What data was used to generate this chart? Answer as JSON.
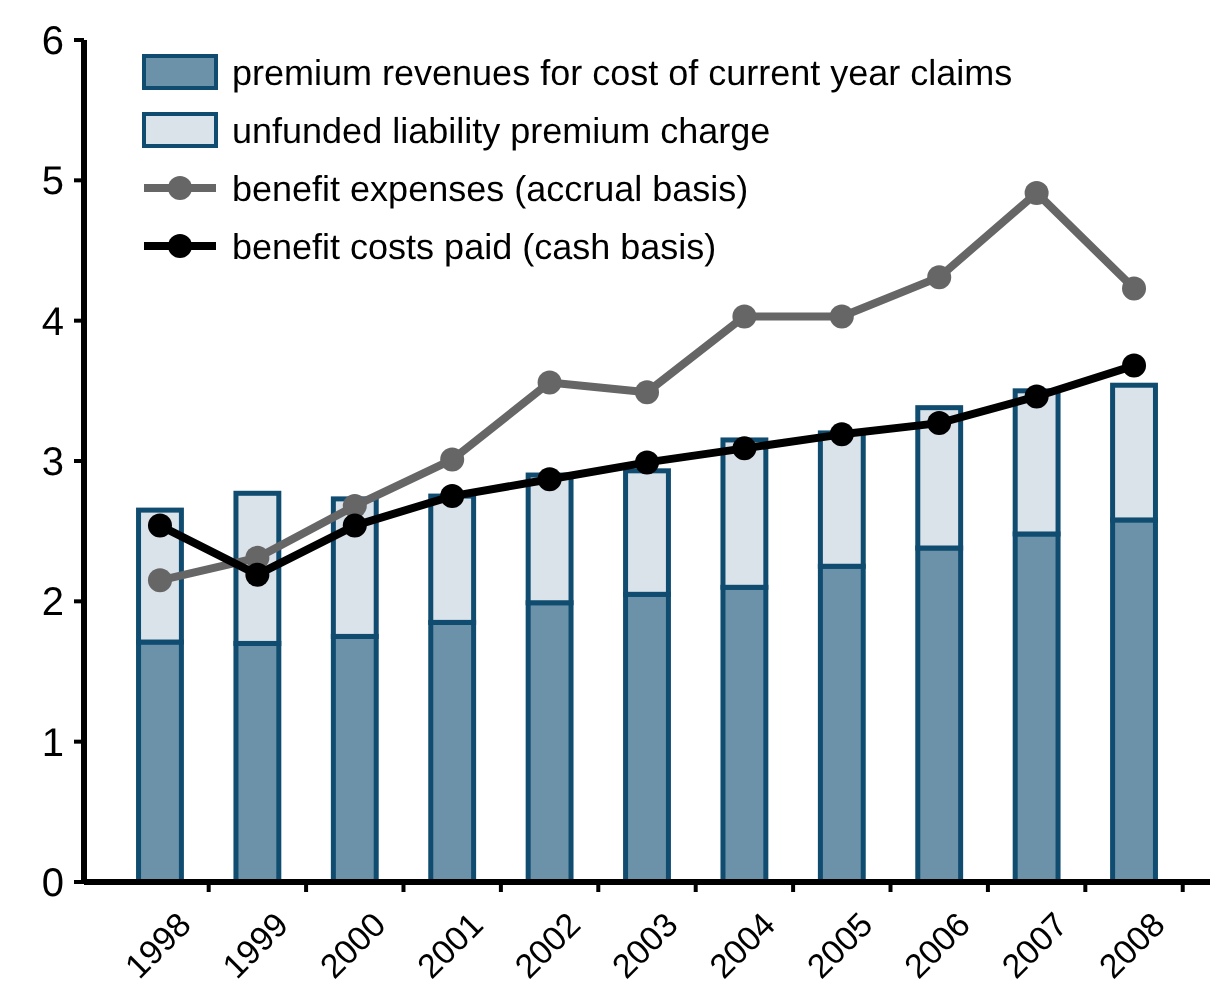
{
  "chart_data": {
    "type": "bar",
    "stacked": true,
    "categories": [
      "1998",
      "1999",
      "2000",
      "2001",
      "2002",
      "2003",
      "2004",
      "2005",
      "2006",
      "2007",
      "2008"
    ],
    "series": [
      {
        "name": "premium revenues for cost of current year claims",
        "color": "#6b92a8",
        "values": [
          1.71,
          1.7,
          1.75,
          1.85,
          1.99,
          2.05,
          2.1,
          2.25,
          2.38,
          2.48,
          2.58
        ]
      },
      {
        "name": "unfunded liability premium charge",
        "color": "#dbe3ea",
        "values": [
          0.94,
          1.07,
          0.98,
          0.9,
          0.91,
          0.88,
          1.05,
          0.95,
          1.0,
          1.02,
          0.96
        ]
      },
      {
        "name": "benefit expenses (accrual basis)",
        "type": "line",
        "color": "#666666",
        "values": [
          2.15,
          2.31,
          2.68,
          3.01,
          3.56,
          3.49,
          4.03,
          4.03,
          4.31,
          4.91,
          4.23
        ]
      },
      {
        "name": "benefit costs paid (cash basis)",
        "type": "line",
        "color": "#000000",
        "values": [
          2.54,
          2.19,
          2.54,
          2.75,
          2.87,
          2.99,
          3.09,
          3.19,
          3.27,
          3.46,
          3.68
        ]
      }
    ],
    "ylim": [
      0,
      6
    ],
    "yticks": [
      0,
      1,
      2,
      3,
      4,
      5,
      6
    ],
    "legend": "top left",
    "marker": "circle",
    "line_style": "solid"
  }
}
